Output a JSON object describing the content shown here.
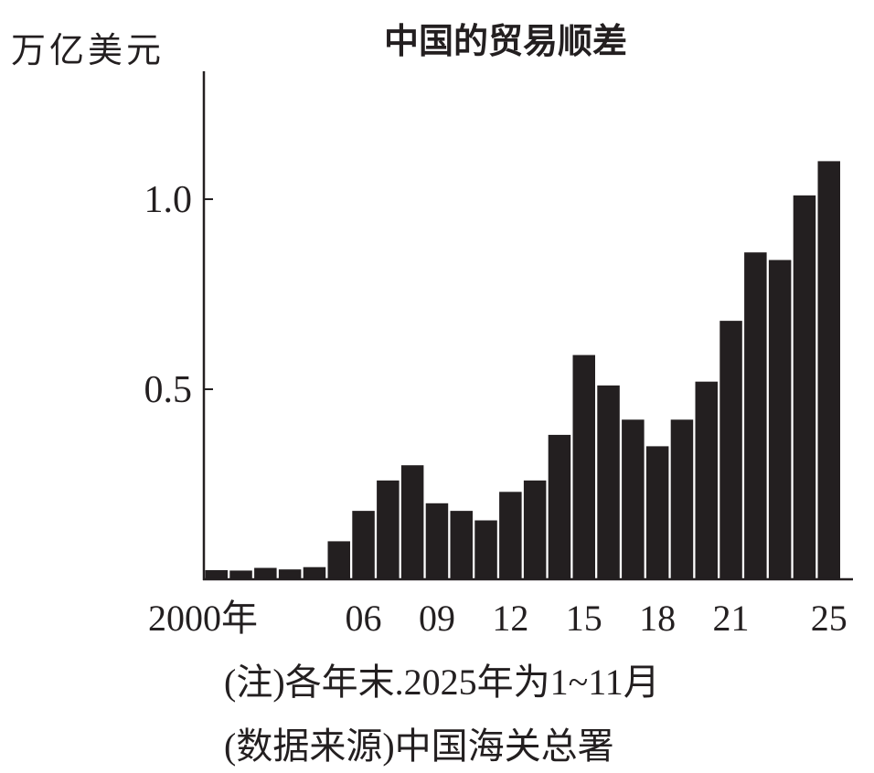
{
  "chart_data": {
    "type": "bar",
    "title": "中国的贸易顺差",
    "ylabel": "万亿美元",
    "xlabel": "",
    "ylim": [
      0,
      1.3
    ],
    "yticks": [
      {
        "value": 0.5,
        "label": "0.5"
      },
      {
        "value": 1.0,
        "label": "1.0"
      }
    ],
    "categories": [
      "2000",
      "2001",
      "2002",
      "2003",
      "2004",
      "2005",
      "2006",
      "2007",
      "2008",
      "2009",
      "2010",
      "2011",
      "2012",
      "2013",
      "2014",
      "2015",
      "2016",
      "2017",
      "2018",
      "2019",
      "2020",
      "2021",
      "2022",
      "2023",
      "2024",
      "2025"
    ],
    "values": [
      0.024,
      0.023,
      0.03,
      0.026,
      0.032,
      0.1,
      0.18,
      0.26,
      0.3,
      0.2,
      0.18,
      0.155,
      0.23,
      0.26,
      0.38,
      0.59,
      0.51,
      0.42,
      0.35,
      0.42,
      0.52,
      0.68,
      0.86,
      0.84,
      1.01,
      1.1
    ],
    "xticks": [
      {
        "index": 0,
        "label": "2000年"
      },
      {
        "index": 6,
        "label": "06"
      },
      {
        "index": 9,
        "label": "09"
      },
      {
        "index": 12,
        "label": "12"
      },
      {
        "index": 15,
        "label": "15"
      },
      {
        "index": 18,
        "label": "18"
      },
      {
        "index": 21,
        "label": "21"
      },
      {
        "index": 25,
        "label": "25"
      }
    ],
    "bar_color": "#231f20",
    "grid": false
  },
  "notes": {
    "note": "(注)各年末.2025年为1~11月",
    "source": "(数据来源)中国海关总署"
  }
}
